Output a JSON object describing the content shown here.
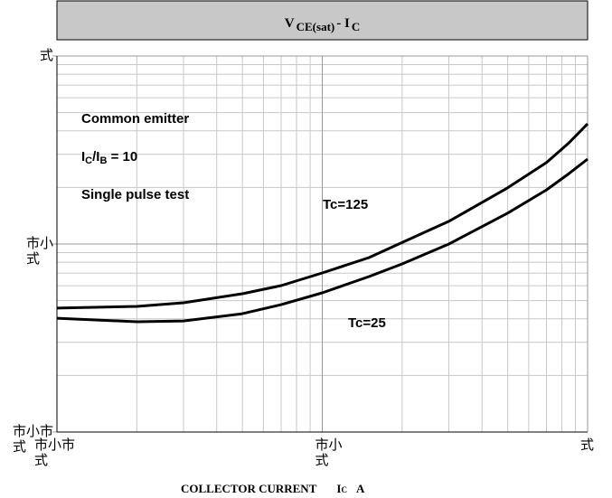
{
  "chart_data": {
    "type": "line",
    "title_parts": [
      "V",
      "CE(sat)",
      "- I",
      "C"
    ],
    "x_label_parts": [
      "COLLECTOR CURRENT",
      "I",
      "C",
      "A"
    ],
    "annotations": [
      {
        "parts": [
          "Common emitter"
        ]
      },
      {
        "parts": [
          "I",
          "C",
          "/I",
          "B",
          " = 10"
        ]
      },
      {
        "parts": [
          "Single pulse test"
        ]
      }
    ],
    "log_x": true,
    "log_y": true,
    "grid": true,
    "xlim": [
      0.01,
      1
    ],
    "ylim": [
      0.01,
      1
    ],
    "xticks": [
      {
        "value": 0.01,
        "label": "市小市\n式"
      },
      {
        "value": 0.1,
        "label": "市小\n式"
      },
      {
        "value": 1,
        "label": "式"
      }
    ],
    "yticks": [
      {
        "value": 0.01,
        "label": "市小市\n式"
      },
      {
        "value": 0.1,
        "label": "市小\n式"
      },
      {
        "value": 1,
        "label": "式"
      }
    ],
    "x": [
      0.01,
      0.02,
      0.03,
      0.05,
      0.07,
      0.1,
      0.15,
      0.2,
      0.3,
      0.5,
      0.7,
      0.85,
      1
    ],
    "series": [
      {
        "name": "Tc=125",
        "color": "#000000",
        "values": [
          0.0456,
          0.0466,
          0.0487,
          0.0544,
          0.0601,
          0.0702,
          0.0847,
          0.102,
          0.132,
          0.199,
          0.271,
          0.345,
          0.436
        ]
      },
      {
        "name": "Tc=25",
        "color": "#000000",
        "values": [
          0.0403,
          0.0386,
          0.039,
          0.0426,
          0.0476,
          0.055,
          0.0671,
          0.0784,
          0.1,
          0.146,
          0.194,
          0.237,
          0.283
        ]
      }
    ]
  }
}
